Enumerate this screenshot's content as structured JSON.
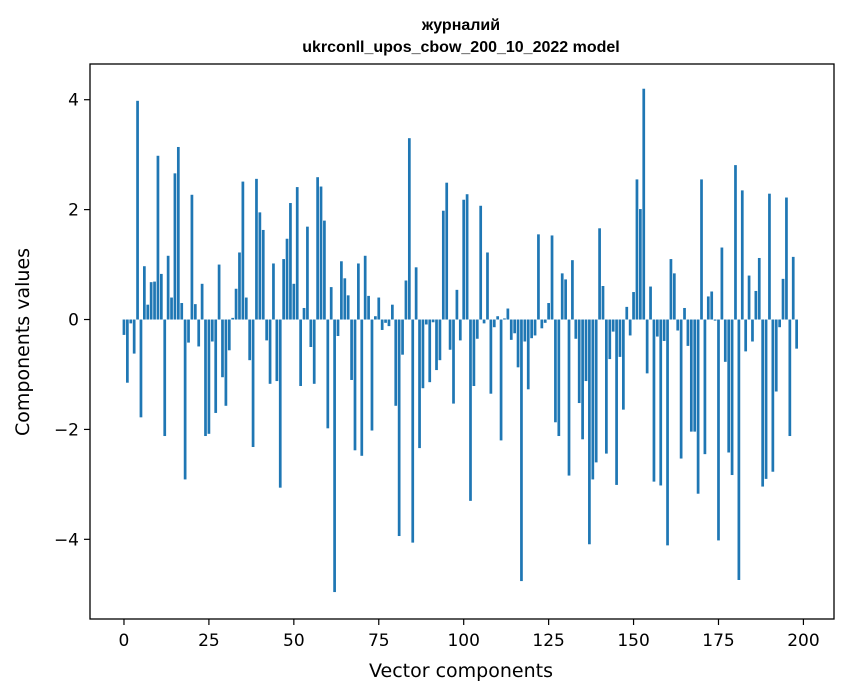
{
  "chart_data": {
    "type": "bar",
    "title_line1": "журналий",
    "title_line2": "ukrconll_upos_cbow_200_10_2022 model",
    "xlabel": "Vector components",
    "ylabel": "Components values",
    "xlim": [
      -10,
      209
    ],
    "ylim": [
      -5.45,
      4.65
    ],
    "xticks": [
      0,
      25,
      50,
      75,
      100,
      125,
      150,
      175,
      200
    ],
    "xtick_labels": [
      "0",
      "25",
      "50",
      "75",
      "100",
      "125",
      "150",
      "175",
      "200"
    ],
    "yticks": [
      4,
      2,
      0,
      -2,
      -4
    ],
    "ytick_labels": [
      "4",
      "2",
      "0",
      "−2",
      "−4"
    ],
    "bar_color": "#1f77b4",
    "values": [
      -0.28,
      -1.15,
      -0.07,
      -0.62,
      3.98,
      -1.78,
      0.97,
      0.27,
      0.68,
      0.69,
      2.98,
      0.83,
      -2.12,
      1.16,
      0.4,
      2.66,
      3.14,
      0.3,
      -2.91,
      -0.42,
      2.27,
      0.28,
      -0.49,
      0.65,
      -2.12,
      -2.08,
      -0.4,
      -1.7,
      1.0,
      -1.05,
      -1.57,
      -0.56,
      0.03,
      0.56,
      1.22,
      2.51,
      0.4,
      -0.74,
      -2.32,
      2.56,
      1.95,
      1.63,
      -0.38,
      -1.17,
      1.02,
      -1.12,
      -3.06,
      1.1,
      1.47,
      2.12,
      0.65,
      2.41,
      -1.21,
      0.21,
      1.69,
      -0.5,
      -1.17,
      2.59,
      2.42,
      1.8,
      -1.98,
      0.59,
      -4.96,
      -0.3,
      1.06,
      0.75,
      0.44,
      -1.1,
      -2.38,
      1.02,
      -2.48,
      1.16,
      0.43,
      -2.02,
      0.06,
      0.4,
      -0.19,
      -0.06,
      -0.12,
      0.27,
      -1.57,
      -3.94,
      -0.64,
      0.71,
      3.3,
      -4.06,
      0.95,
      -2.34,
      -1.25,
      -0.09,
      -1.14,
      -0.05,
      -0.92,
      -0.74,
      1.98,
      2.49,
      -0.55,
      -1.53,
      0.54,
      -0.38,
      2.18,
      2.28,
      -3.3,
      -1.21,
      -0.35,
      2.07,
      -0.07,
      1.22,
      -1.35,
      -0.14,
      0.06,
      -2.2,
      0.02,
      0.2,
      -0.37,
      -0.25,
      -0.87,
      -4.76,
      -0.4,
      -1.27,
      -0.34,
      -0.29,
      1.55,
      -0.16,
      -0.06,
      0.3,
      1.53,
      -1.87,
      -2.12,
      0.84,
      0.73,
      -2.84,
      1.08,
      -0.35,
      -1.52,
      -2.18,
      -1.12,
      -4.09,
      -2.91,
      -2.6,
      1.66,
      0.61,
      -2.44,
      -0.72,
      -0.22,
      -3.01,
      -0.68,
      -1.64,
      0.23,
      -0.29,
      0.5,
      2.55,
      2.01,
      4.2,
      -0.98,
      0.6,
      -2.95,
      -0.31,
      -3.02,
      -0.39,
      -4.11,
      1.1,
      0.84,
      -0.2,
      -2.53,
      0.21,
      -0.48,
      -2.04,
      -2.04,
      -3.17,
      2.55,
      -2.45,
      0.42,
      0.51,
      -0.02,
      -4.02,
      1.31,
      -0.77,
      -2.42,
      -2.83,
      2.81,
      -4.74,
      2.35,
      -0.58,
      0.8,
      -0.4,
      0.52,
      1.12,
      -3.04,
      -2.9,
      2.29,
      -2.77,
      -1.31,
      -0.14,
      0.74,
      2.22,
      -2.12,
      1.14,
      -0.53,
      0.0
    ]
  }
}
